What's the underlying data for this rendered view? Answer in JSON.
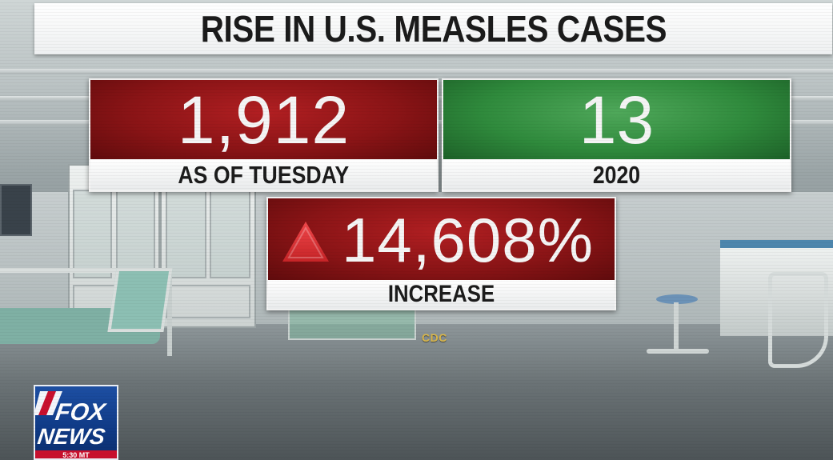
{
  "title": "RISE IN U.S. MEASLES CASES",
  "stats": {
    "current": {
      "value": "1,912",
      "label": "AS OF TUESDAY",
      "color": "#8a1416"
    },
    "baseline": {
      "value": "13",
      "label": "2020",
      "color": "#2f8a3c"
    },
    "change": {
      "icon": "triangle-up-icon",
      "value": "14,608%",
      "label": "INCREASE",
      "color": "#8a1416"
    }
  },
  "source": "CDC",
  "logo": {
    "line1": "FOX",
    "line2": "NEWS",
    "clock": "5:30 MT"
  },
  "colors": {
    "red": "#8a1416",
    "green": "#2f8a3c",
    "source": "#d9b64a",
    "logo_blue": "#1d4fa3"
  }
}
